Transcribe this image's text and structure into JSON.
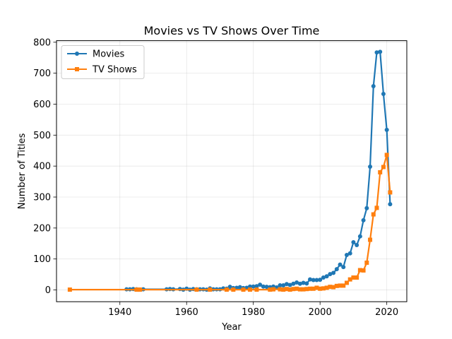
{
  "chart_data": {
    "type": "line",
    "title": "Movies vs TV Shows Over Time",
    "xlabel": "Year",
    "ylabel": "Number of Titles",
    "xlim": [
      1921,
      2026
    ],
    "ylim": [
      -38,
      805
    ],
    "xticks": [
      1940,
      1960,
      1980,
      2000,
      2020
    ],
    "yticks": [
      0,
      100,
      200,
      300,
      400,
      500,
      600,
      700,
      800
    ],
    "grid": true,
    "legend_position": "upper-left",
    "series": [
      {
        "name": "Movies",
        "color": "#1f77b4",
        "marker": "circle",
        "points": [
          [
            1942,
            2
          ],
          [
            1943,
            2
          ],
          [
            1944,
            3
          ],
          [
            1945,
            2
          ],
          [
            1946,
            1
          ],
          [
            1947,
            2
          ],
          [
            1954,
            2
          ],
          [
            1955,
            3
          ],
          [
            1956,
            2
          ],
          [
            1958,
            3
          ],
          [
            1959,
            1
          ],
          [
            1960,
            4
          ],
          [
            1961,
            1
          ],
          [
            1962,
            3
          ],
          [
            1963,
            2
          ],
          [
            1964,
            2
          ],
          [
            1965,
            2
          ],
          [
            1966,
            1
          ],
          [
            1967,
            5
          ],
          [
            1968,
            2
          ],
          [
            1969,
            2
          ],
          [
            1970,
            2
          ],
          [
            1971,
            5
          ],
          [
            1972,
            4
          ],
          [
            1973,
            10
          ],
          [
            1974,
            6
          ],
          [
            1975,
            7
          ],
          [
            1976,
            9
          ],
          [
            1977,
            6
          ],
          [
            1978,
            7
          ],
          [
            1979,
            11
          ],
          [
            1980,
            11
          ],
          [
            1981,
            12
          ],
          [
            1982,
            17
          ],
          [
            1983,
            11
          ],
          [
            1984,
            10
          ],
          [
            1985,
            9
          ],
          [
            1986,
            11
          ],
          [
            1987,
            8
          ],
          [
            1988,
            15
          ],
          [
            1989,
            15
          ],
          [
            1990,
            19
          ],
          [
            1991,
            16
          ],
          [
            1992,
            20
          ],
          [
            1993,
            24
          ],
          [
            1994,
            20
          ],
          [
            1995,
            23
          ],
          [
            1996,
            21
          ],
          [
            1997,
            34
          ],
          [
            1998,
            32
          ],
          [
            1999,
            32
          ],
          [
            2000,
            33
          ],
          [
            2001,
            40
          ],
          [
            2002,
            44
          ],
          [
            2003,
            51
          ],
          [
            2004,
            55
          ],
          [
            2005,
            67
          ],
          [
            2006,
            82
          ],
          [
            2007,
            74
          ],
          [
            2008,
            113
          ],
          [
            2009,
            118
          ],
          [
            2010,
            154
          ],
          [
            2011,
            145
          ],
          [
            2012,
            173
          ],
          [
            2013,
            225
          ],
          [
            2014,
            264
          ],
          [
            2015,
            398
          ],
          [
            2016,
            658
          ],
          [
            2017,
            767
          ],
          [
            2018,
            769
          ],
          [
            2019,
            633
          ],
          [
            2020,
            517
          ],
          [
            2021,
            277
          ]
        ]
      },
      {
        "name": "TV Shows",
        "color": "#ff7f0e",
        "marker": "square",
        "points": [
          [
            1925,
            1
          ],
          [
            1945,
            1
          ],
          [
            1946,
            1
          ],
          [
            1963,
            1
          ],
          [
            1967,
            1
          ],
          [
            1972,
            1
          ],
          [
            1974,
            1
          ],
          [
            1977,
            1
          ],
          [
            1979,
            1
          ],
          [
            1981,
            1
          ],
          [
            1985,
            1
          ],
          [
            1986,
            2
          ],
          [
            1988,
            2
          ],
          [
            1989,
            1
          ],
          [
            1990,
            3
          ],
          [
            1991,
            1
          ],
          [
            1992,
            3
          ],
          [
            1993,
            4
          ],
          [
            1994,
            2
          ],
          [
            1995,
            2
          ],
          [
            1996,
            3
          ],
          [
            1997,
            4
          ],
          [
            1998,
            4
          ],
          [
            1999,
            7
          ],
          [
            2000,
            4
          ],
          [
            2001,
            5
          ],
          [
            2002,
            7
          ],
          [
            2003,
            10
          ],
          [
            2004,
            9
          ],
          [
            2005,
            13
          ],
          [
            2006,
            14
          ],
          [
            2007,
            14
          ],
          [
            2008,
            23
          ],
          [
            2009,
            34
          ],
          [
            2010,
            40
          ],
          [
            2011,
            40
          ],
          [
            2012,
            64
          ],
          [
            2013,
            63
          ],
          [
            2014,
            88
          ],
          [
            2015,
            162
          ],
          [
            2016,
            244
          ],
          [
            2017,
            265
          ],
          [
            2018,
            380
          ],
          [
            2019,
            397
          ],
          [
            2020,
            436
          ],
          [
            2021,
            315
          ]
        ]
      }
    ]
  }
}
